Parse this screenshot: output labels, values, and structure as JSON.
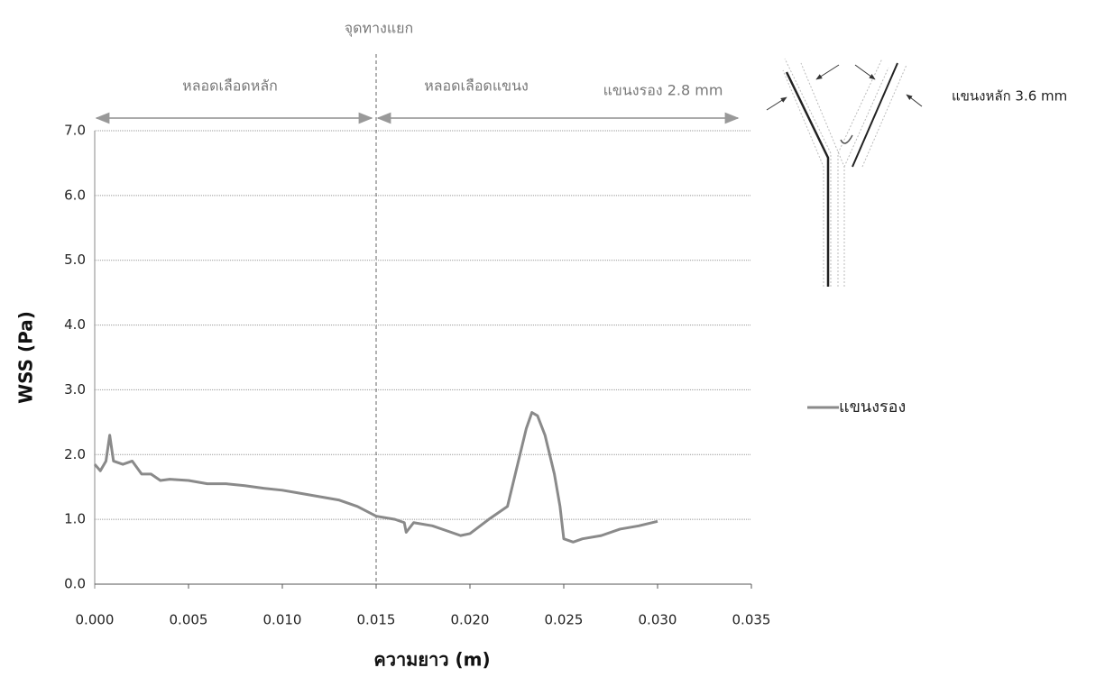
{
  "chart_data": {
    "type": "line",
    "xlabel": "ความยาว (m)",
    "ylabel": "WSS (Pa)",
    "annotations": {
      "junction": "จุดทางแยก",
      "main_vessel": "หลอดเลือดหลัก",
      "branch_vessel": "หลอดเลือดแขนง",
      "secondary_branch": "แขนงรอง 2.8 mm",
      "main_branch": "แขนงหลัก 3.6 mm"
    },
    "junction_x": 0.015,
    "xlim": [
      0,
      0.035
    ],
    "ylim": [
      0,
      7
    ],
    "xticks": [
      {
        "value": 0,
        "label": "0.000"
      },
      {
        "value": 0.005,
        "label": "0.005"
      },
      {
        "value": 0.01,
        "label": "0.010"
      },
      {
        "value": 0.015,
        "label": "0.015"
      },
      {
        "value": 0.02,
        "label": "0.020"
      },
      {
        "value": 0.025,
        "label": "0.025"
      },
      {
        "value": 0.03,
        "label": "0.030"
      },
      {
        "value": 0.035,
        "label": "0.035"
      }
    ],
    "yticks": [
      {
        "value": 0,
        "label": "0.0"
      },
      {
        "value": 1,
        "label": "1.0"
      },
      {
        "value": 2,
        "label": "2.0"
      },
      {
        "value": 3,
        "label": "3.0"
      },
      {
        "value": 4,
        "label": "4.0"
      },
      {
        "value": 5,
        "label": "5.0"
      },
      {
        "value": 6,
        "label": "6.0"
      },
      {
        "value": 7,
        "label": "7.0"
      }
    ],
    "grid": true,
    "legend": "right",
    "x": [
      0,
      0.0003,
      0.0006,
      0.0008,
      0.001,
      0.0015,
      0.002,
      0.0025,
      0.003,
      0.0035,
      0.004,
      0.005,
      0.006,
      0.007,
      0.008,
      0.009,
      0.01,
      0.011,
      0.012,
      0.013,
      0.014,
      0.015,
      0.016,
      0.0165,
      0.0166,
      0.017,
      0.018,
      0.019,
      0.0195,
      0.02,
      0.021,
      0.022,
      0.0225,
      0.023,
      0.0233,
      0.0236,
      0.024,
      0.0245,
      0.0248,
      0.025,
      0.0255,
      0.026,
      0.027,
      0.028,
      0.029,
      0.03
    ],
    "series": [
      {
        "name": "แขนงรอง",
        "color": "#8a8a8a",
        "values": [
          1.85,
          1.75,
          1.9,
          2.3,
          1.9,
          1.85,
          1.9,
          1.7,
          1.7,
          1.6,
          1.62,
          1.6,
          1.55,
          1.55,
          1.52,
          1.48,
          1.45,
          1.4,
          1.35,
          1.3,
          1.2,
          1.05,
          1.0,
          0.95,
          0.8,
          0.95,
          0.9,
          0.8,
          0.75,
          0.78,
          1.0,
          1.2,
          1.8,
          2.4,
          2.65,
          2.6,
          2.3,
          1.7,
          1.2,
          0.7,
          0.65,
          0.7,
          0.75,
          0.85,
          0.9,
          0.97
        ]
      }
    ]
  }
}
